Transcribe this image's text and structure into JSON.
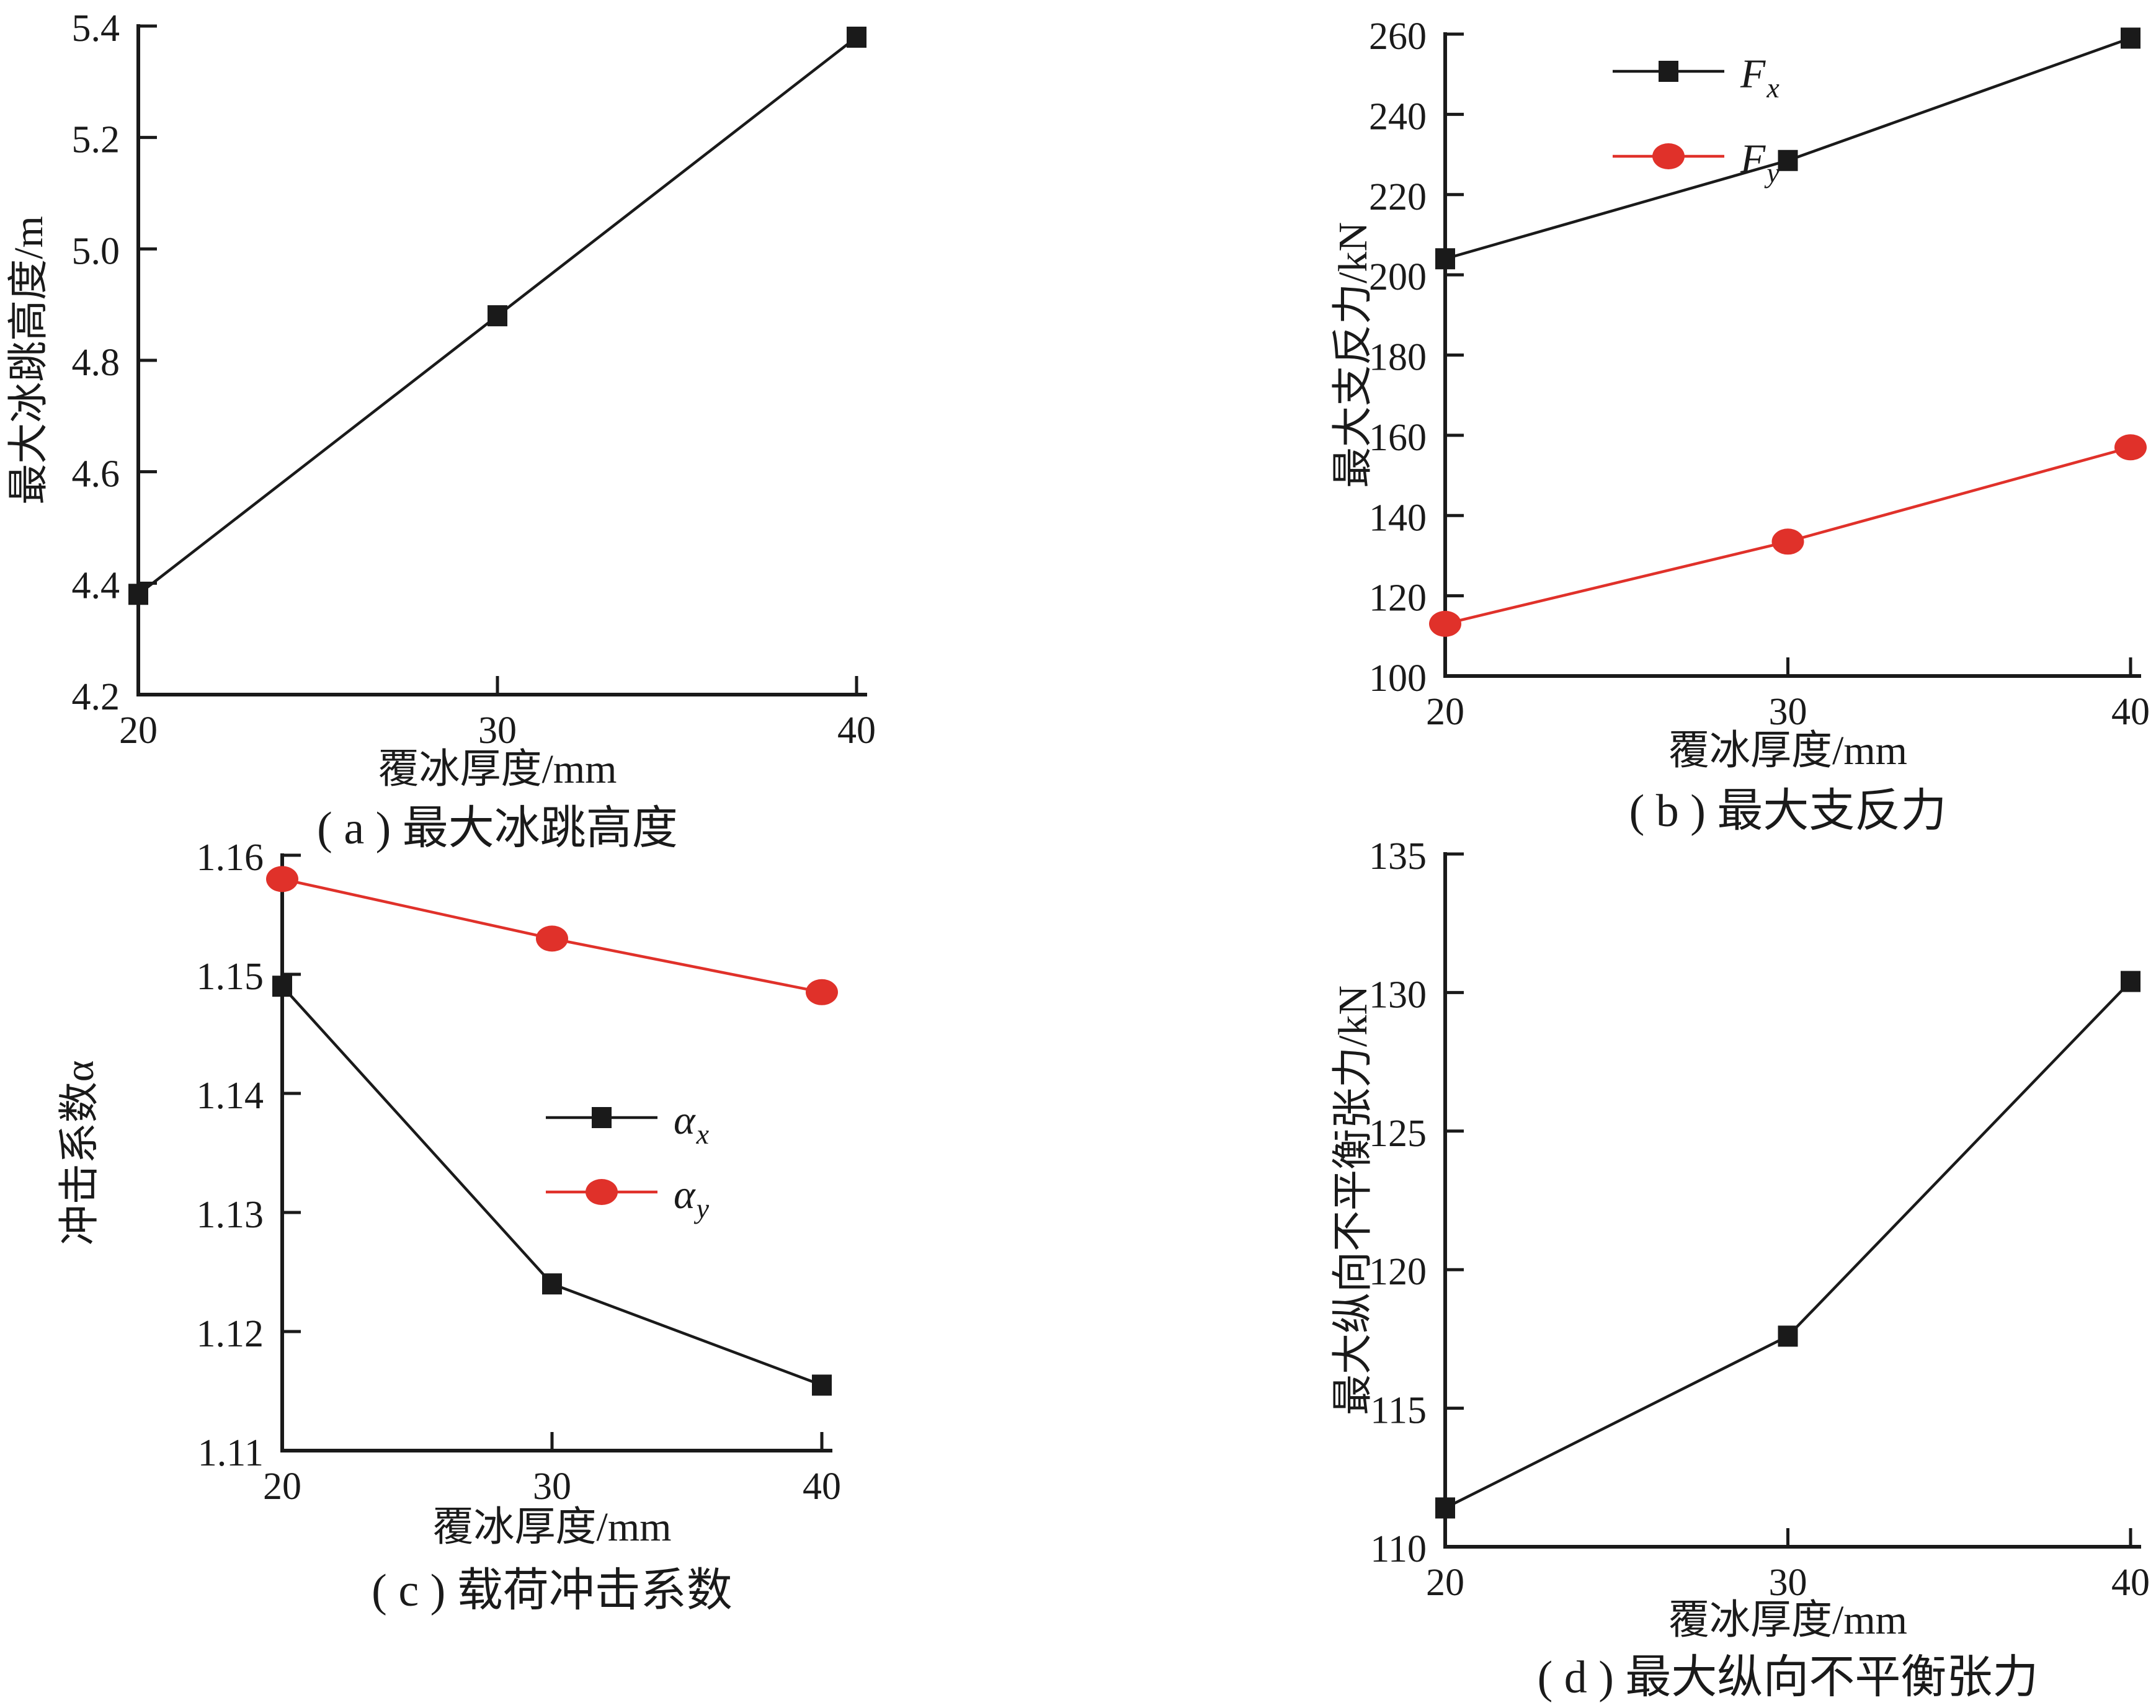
{
  "figure": {
    "background": "#ffffff",
    "axis_color": "#1a1a1a",
    "black_series_color": "#1a1a1a",
    "red_series_color": "#e0312a"
  },
  "chart_data": [
    {
      "id": "a",
      "type": "line",
      "title": "( a ) 最大冰跳高度",
      "xlabel": "覆冰厚度/mm",
      "ylabel": "最大冰跳高度/m",
      "x": [
        20,
        30,
        40
      ],
      "xtick_labels": [
        "20",
        "30",
        "40"
      ],
      "ytick_labels": [
        "5.4",
        "5.2",
        "5.0",
        "4.8",
        "4.6",
        "4.4",
        "4.2"
      ],
      "ylim": [
        4.2,
        5.4
      ],
      "grid": false,
      "legend": null,
      "series": [
        {
          "name": "max-ice-jump-height",
          "marker": "square",
          "color": "#1a1a1a",
          "values": [
            4.38,
            4.88,
            5.38
          ]
        }
      ]
    },
    {
      "id": "b",
      "type": "line",
      "title": "( b ) 最大支反力",
      "xlabel": "覆冰厚度/mm",
      "ylabel": "最大支反力/kN",
      "x": [
        20,
        30,
        40
      ],
      "xtick_labels": [
        "20",
        "30",
        "40"
      ],
      "ytick_labels": [
        "260",
        "240",
        "220",
        "200",
        "180",
        "160",
        "140",
        "120",
        "100"
      ],
      "ylim": [
        100,
        260
      ],
      "grid": false,
      "legend": {
        "position": "top-inside"
      },
      "series": [
        {
          "name": "Fx",
          "label_base": "F",
          "label_sub": "x",
          "marker": "square",
          "color": "#1a1a1a",
          "values": [
            204,
            228.5,
            259
          ]
        },
        {
          "name": "Fy",
          "label_base": "F",
          "label_sub": "y",
          "marker": "circle",
          "color": "#e0312a",
          "values": [
            113,
            133.5,
            157
          ]
        }
      ]
    },
    {
      "id": "c",
      "type": "line",
      "title": "( c ) 载荷冲击系数",
      "xlabel": "覆冰厚度/mm",
      "ylabel": "冲击系数α",
      "x": [
        20,
        30,
        40
      ],
      "xtick_labels": [
        "20",
        "30",
        "40"
      ],
      "ytick_labels": [
        "1.16",
        "1.15",
        "1.14",
        "1.13",
        "1.12",
        "1.11"
      ],
      "ylim": [
        1.11,
        1.16
      ],
      "grid": false,
      "legend": {
        "position": "middle-inside"
      },
      "series": [
        {
          "name": "alpha-x",
          "label_base": "α",
          "label_sub": "x",
          "marker": "square",
          "color": "#1a1a1a",
          "values": [
            1.149,
            1.124,
            1.1155
          ]
        },
        {
          "name": "alpha-y",
          "label_base": "α",
          "label_sub": "y",
          "marker": "circle",
          "color": "#e0312a",
          "values": [
            1.158,
            1.153,
            1.1485
          ]
        }
      ]
    },
    {
      "id": "d",
      "type": "line",
      "title": "( d ) 最大纵向不平衡张力",
      "xlabel": "覆冰厚度/mm",
      "ylabel": "最大纵向不平衡张力/kN",
      "x": [
        20,
        30,
        40
      ],
      "xtick_labels": [
        "20",
        "30",
        "40"
      ],
      "ytick_labels": [
        "135",
        "130",
        "125",
        "120",
        "115",
        "110"
      ],
      "ylim": [
        110,
        135
      ],
      "grid": false,
      "legend": null,
      "series": [
        {
          "name": "max-longitudinal-unbalanced-tension",
          "marker": "square",
          "color": "#1a1a1a",
          "values": [
            111.4,
            117.6,
            130.4
          ]
        }
      ]
    }
  ]
}
